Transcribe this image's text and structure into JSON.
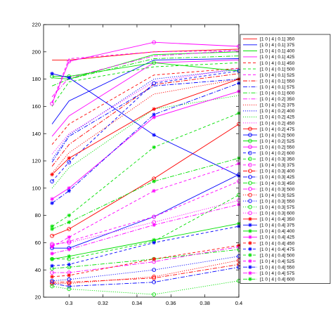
{
  "chart_data": {
    "type": "line",
    "title": "",
    "xlabel": "",
    "ylabel": "",
    "xlim": [
      0.285,
      0.4
    ],
    "ylim": [
      20,
      220
    ],
    "xticks": [
      0.3,
      0.32,
      0.34,
      0.36,
      0.38,
      0.4
    ],
    "xtick_labels": [
      "0.3",
      "0.32",
      "0.34",
      "0.36",
      "0.38",
      "0.4"
    ],
    "yticks": [
      20,
      40,
      60,
      80,
      100,
      120,
      140,
      160,
      180,
      200,
      220
    ],
    "grid": false,
    "legend_position": "right-outside",
    "x": [
      0.29,
      0.3,
      0.35,
      0.4
    ],
    "series": [
      {
        "name": "[1 0 | 4 | 0.1] 350",
        "color": "#ff0000",
        "style": "solid",
        "marker": "none",
        "values": [
          194,
          194,
          200,
          202
        ]
      },
      {
        "name": "[1 0 | 4 | 0.1] 375",
        "color": "#0000ff",
        "style": "solid",
        "marker": "none",
        "values": [
          147,
          164,
          194,
          195
        ]
      },
      {
        "name": "[1 0 | 4 | 0.1] 400",
        "color": "#00e000",
        "style": "solid",
        "marker": "none",
        "values": [
          181,
          180,
          198,
          200
        ]
      },
      {
        "name": "[1 0 | 4 | 0.1] 425",
        "color": "#ff00ff",
        "style": "solid",
        "marker": "none",
        "values": [
          138,
          153,
          192,
          194
        ]
      },
      {
        "name": "[1 0 | 4 | 0.1] 450",
        "color": "#ff0000",
        "style": "dashed",
        "marker": "none",
        "values": [
          132,
          147,
          183,
          188
        ]
      },
      {
        "name": "[1 0 | 4 | 0.1] 500",
        "color": "#00e000",
        "style": "dashed",
        "marker": "none",
        "values": [
          160,
          178,
          189,
          192
        ]
      },
      {
        "name": "[1 0 | 4 | 0.1] 525",
        "color": "#ff00ff",
        "style": "dashed",
        "marker": "none",
        "values": [
          163,
          195,
          200,
          201
        ]
      },
      {
        "name": "[1 0 | 4 | 0.1] 550",
        "color": "#ff0000",
        "style": "dashdot",
        "marker": "none",
        "values": [
          116,
          132,
          176,
          184
        ]
      },
      {
        "name": "[1 0 | 4 | 0.1] 575",
        "color": "#0000ff",
        "style": "dashdot",
        "marker": "none",
        "values": [
          119,
          138,
          175,
          180
        ]
      },
      {
        "name": "[1 0 | 4 | 0.1] 600",
        "color": "#00e000",
        "style": "dashdot",
        "marker": "none",
        "values": [
          175,
          180,
          195,
          197
        ]
      },
      {
        "name": "[1 0 | 4 | 0.2] 350",
        "color": "#ff00ff",
        "style": "dashdot",
        "marker": "none",
        "values": [
          167,
          181,
          197,
          201
        ]
      },
      {
        "name": "[1 0 | 4 | 0.2] 375",
        "color": "#ff0000",
        "style": "dotted",
        "marker": "none",
        "values": [
          111,
          126,
          169,
          180
        ]
      },
      {
        "name": "[1 0 | 4 | 0.2] 400",
        "color": "#0000ff",
        "style": "dotted",
        "marker": "none",
        "values": [
          121,
          139,
          180,
          187
        ]
      },
      {
        "name": "[1 0 | 4 | 0.2] 425",
        "color": "#00e000",
        "style": "dotted",
        "marker": "none",
        "values": [
          100,
          115,
          158,
          168
        ]
      },
      {
        "name": "[1 0 | 4 | 0.2] 450",
        "color": "#ff00ff",
        "style": "dotted",
        "marker": "none",
        "values": [
          125,
          140,
          178,
          188
        ]
      },
      {
        "name": "[1 0 | 4 | 0.2] 475",
        "color": "#ff0000",
        "style": "solid",
        "marker": "circle",
        "values": [
          65,
          70,
          107,
          147
        ]
      },
      {
        "name": "[1 0 | 4 | 0.2] 500",
        "color": "#0000ff",
        "style": "solid",
        "marker": "circle",
        "values": [
          56,
          56,
          79,
          110
        ]
      },
      {
        "name": "[1 0 | 4 | 0.2] 525",
        "color": "#00e000",
        "style": "solid",
        "marker": "circle",
        "values": [
          182,
          182,
          192,
          186
        ]
      },
      {
        "name": "[1 0 | 4 | 0.2] 550",
        "color": "#ff00ff",
        "style": "solid",
        "marker": "circle",
        "values": [
          162,
          193,
          207,
          204
        ]
      },
      {
        "name": "[1 0 | 4 | 0.2] 600",
        "color": "#0000ff",
        "style": "dashed",
        "marker": "circle",
        "values": [
          105,
          119,
          177,
          186
        ]
      },
      {
        "name": "[1 0 | 4 | 0.3] 350",
        "color": "#00e000",
        "style": "dashed",
        "marker": "circle",
        "values": [
          48,
          48,
          61,
          95
        ]
      },
      {
        "name": "[1 0 | 4 | 0.3] 375",
        "color": "#ff00ff",
        "style": "dashed",
        "marker": "circle",
        "values": [
          58,
          61,
          79,
          105
        ]
      },
      {
        "name": "[1 0 | 4 | 0.3] 400",
        "color": "#ff0000",
        "style": "dashdot",
        "marker": "circle",
        "values": [
          31,
          31,
          34,
          44
        ]
      },
      {
        "name": "[1 0 | 4 | 0.3] 425",
        "color": "#0000ff",
        "style": "dashdot",
        "marker": "circle",
        "values": [
          30,
          28,
          31,
          42
        ]
      },
      {
        "name": "[1 0 | 4 | 0.3] 450",
        "color": "#00e000",
        "style": "dashdot",
        "marker": "circle",
        "values": [
          41,
          42,
          48,
          55
        ]
      },
      {
        "name": "[1 0 | 4 | 0.3] 500",
        "color": "#ff00ff",
        "style": "dashdot",
        "marker": "circle",
        "values": [
          38,
          38,
          46,
          57
        ]
      },
      {
        "name": "[1 0 | 4 | 0.3] 525",
        "color": "#ff0000",
        "style": "dotted",
        "marker": "circle",
        "values": [
          30,
          30,
          35,
          47
        ]
      },
      {
        "name": "[1 0 | 4 | 0.3] 550",
        "color": "#0000ff",
        "style": "dotted",
        "marker": "circle",
        "values": [
          32,
          33,
          40,
          50
        ]
      },
      {
        "name": "[1 0 | 4 | 0.3] 575",
        "color": "#00e000",
        "style": "dotted",
        "marker": "circle",
        "values": [
          28,
          26,
          22,
          32
        ]
      },
      {
        "name": "[1 0 | 4 | 0.3] 600",
        "color": "#ff00ff",
        "style": "dotted",
        "marker": "circle",
        "values": [
          59,
          60,
          75,
          91
        ]
      },
      {
        "name": "[1 0 | 4 | 0.4] 350",
        "color": "#ff0000",
        "style": "solid",
        "marker": "star",
        "values": [
          110,
          122,
          158,
          180
        ]
      },
      {
        "name": "[1 0 | 4 | 0.4] 375",
        "color": "#0000ff",
        "style": "solid",
        "marker": "star",
        "values": [
          184,
          181,
          139,
          109
        ]
      },
      {
        "name": "[1 0 | 4 | 0.4] 400",
        "color": "#00e000",
        "style": "solid",
        "marker": "star",
        "values": [
          48,
          50,
          62,
          74
        ]
      },
      {
        "name": "[1 0 | 4 | 0.4] 425",
        "color": "#ff00ff",
        "style": "solid",
        "marker": "star",
        "values": [
          92,
          100,
          152,
          171
        ]
      },
      {
        "name": "[1 0 | 4 | 0.4] 450",
        "color": "#ff0000",
        "style": "dashed",
        "marker": "star",
        "values": [
          35,
          36,
          48,
          58
        ]
      },
      {
        "name": "[1 0 | 4 | 0.4] 475",
        "color": "#0000ff",
        "style": "dashed",
        "marker": "star",
        "values": [
          43,
          44,
          60,
          72
        ]
      },
      {
        "name": "[1 0 | 4 | 0.4] 500",
        "color": "#00e000",
        "style": "dashed",
        "marker": "star",
        "values": [
          72,
          80,
          130,
          155
        ]
      },
      {
        "name": "[1 0 | 4 | 0.4] 525",
        "color": "#ff00ff",
        "style": "dashed",
        "marker": "star",
        "values": [
          57,
          64,
          98,
          118
        ]
      },
      {
        "name": "[1 0 | 4 | 0.4] 550",
        "color": "#0000ff",
        "style": "dashdot",
        "marker": "star",
        "values": [
          89,
          98,
          154,
          177
        ]
      },
      {
        "name": "[1 0 | 4 | 0.4] 575",
        "color": "#ff00ff",
        "style": "dashdot",
        "marker": "star",
        "values": [
          52,
          55,
          73,
          88
        ]
      },
      {
        "name": "[1 0 | 4 | 0.4] 600",
        "color": "#00e000",
        "style": "dashdot",
        "marker": "star",
        "values": [
          70,
          75,
          105,
          122
        ]
      }
    ]
  }
}
